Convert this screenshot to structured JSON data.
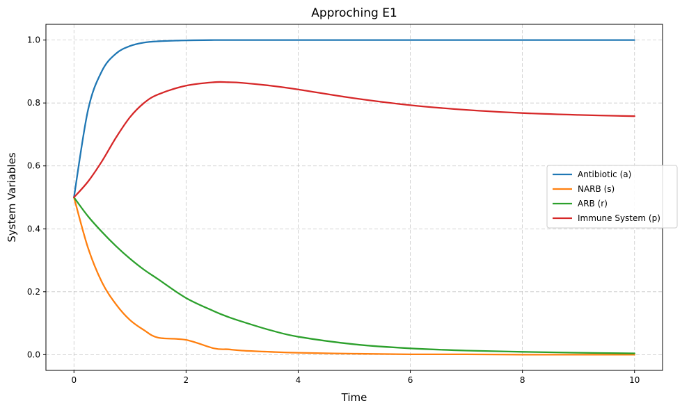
{
  "chart_data": {
    "type": "line",
    "title": "Approching E1",
    "xlabel": "Time",
    "ylabel": "System Variables",
    "xlim": [
      -0.5,
      10.5
    ],
    "ylim": [
      -0.05,
      1.05
    ],
    "xticks": [
      0,
      2,
      4,
      6,
      8,
      10
    ],
    "yticks": [
      0.0,
      0.2,
      0.4,
      0.6,
      0.8,
      1.0
    ],
    "xtick_labels": [
      "0",
      "2",
      "4",
      "6",
      "8",
      "10"
    ],
    "ytick_labels": [
      "0.0",
      "0.2",
      "0.4",
      "0.6",
      "0.8",
      "1.0"
    ],
    "grid": true,
    "legend_position": "center-right",
    "x": [
      0,
      0.25,
      0.5,
      0.75,
      1,
      1.25,
      1.5,
      2,
      2.5,
      2.75,
      3,
      3.5,
      4,
      5,
      6,
      7,
      8,
      9,
      10
    ],
    "series": [
      {
        "name": "Antibiotic (a)",
        "color": "#1f77b4",
        "values": [
          0.5,
          0.777,
          0.902,
          0.957,
          0.981,
          0.992,
          0.996,
          0.999,
          1.0,
          1.0,
          1.0,
          1.0,
          1.0,
          1.0,
          1.0,
          1.0,
          1.0,
          1.0,
          1.0
        ]
      },
      {
        "name": "NARB (s)",
        "color": "#ff7f0e",
        "values": [
          0.5,
          0.34,
          0.23,
          0.16,
          0.11,
          0.078,
          0.054,
          0.047,
          0.02,
          0.017,
          0.013,
          0.009,
          0.006,
          0.003,
          0.001,
          0.001,
          0.0,
          0.0,
          0.0
        ]
      },
      {
        "name": "ARB (r)",
        "color": "#2ca02c",
        "values": [
          0.5,
          0.44,
          0.39,
          0.345,
          0.305,
          0.27,
          0.24,
          0.18,
          0.138,
          0.12,
          0.105,
          0.078,
          0.057,
          0.033,
          0.02,
          0.013,
          0.009,
          0.006,
          0.004
        ]
      },
      {
        "name": "Immune System (p)",
        "color": "#d62728",
        "values": [
          0.5,
          0.55,
          0.615,
          0.69,
          0.755,
          0.8,
          0.827,
          0.855,
          0.866,
          0.866,
          0.864,
          0.855,
          0.843,
          0.815,
          0.793,
          0.778,
          0.768,
          0.762,
          0.758
        ]
      }
    ]
  }
}
